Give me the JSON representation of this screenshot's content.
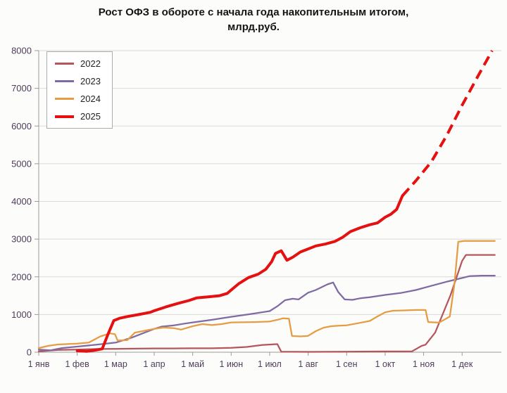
{
  "title": {
    "line1": "Рост ОФЗ в обороте с начала года накопительным итогом,",
    "line2": "млрд.руб."
  },
  "chart_data": {
    "type": "line",
    "title": "Рост ОФЗ в обороте с начала года накопительным итогом, млрд.руб.",
    "units": "млрд.руб.",
    "x_tick_labels": [
      "1 янв",
      "1 фев",
      "1 мар",
      "1 апр",
      "1 май",
      "1 июн",
      "1 июл",
      "1 авг",
      "1 сен",
      "1 окт",
      "1 ноя",
      "1 дек"
    ],
    "x_axis_note": "x units are months, 0 = 1 янв",
    "xlim_months": [
      0,
      12.02
    ],
    "ylim": [
      0,
      8000
    ],
    "y_ticks": [
      0,
      1000,
      2000,
      3000,
      4000,
      5000,
      6000,
      7000,
      8000
    ],
    "grid": "horizontal",
    "legend_position": "top-left",
    "axis_label_color": "#4e3d5c",
    "grid_color": "#d9d9d9",
    "axis_color": "#9b9b9b",
    "series": [
      {
        "name": "2022",
        "color": "#b5565c",
        "stroke_width": 2.25,
        "points": [
          [
            0,
            20
          ],
          [
            0.5,
            60
          ],
          [
            1,
            70
          ],
          [
            1.5,
            85
          ],
          [
            2,
            90
          ],
          [
            2.5,
            95
          ],
          [
            3,
            100
          ],
          [
            3.5,
            100
          ],
          [
            4,
            105
          ],
          [
            4.5,
            105
          ],
          [
            5,
            115
          ],
          [
            5.4,
            140
          ],
          [
            5.8,
            190
          ],
          [
            6.1,
            210
          ],
          [
            6.2,
            215
          ],
          [
            6.3,
            15
          ],
          [
            7,
            10
          ],
          [
            8,
            15
          ],
          [
            9,
            20
          ],
          [
            9.7,
            25
          ],
          [
            9.95,
            170
          ],
          [
            10.05,
            200
          ],
          [
            10.3,
            520
          ],
          [
            10.7,
            1520
          ],
          [
            11.0,
            2420
          ],
          [
            11.1,
            2580
          ],
          [
            11.85,
            2580
          ]
        ]
      },
      {
        "name": "2023",
        "color": "#7e6ba3",
        "stroke_width": 2.25,
        "points": [
          [
            0,
            70
          ],
          [
            0.3,
            50
          ],
          [
            0.6,
            110
          ],
          [
            1,
            150
          ],
          [
            1.5,
            200
          ],
          [
            2,
            255
          ],
          [
            2.4,
            380
          ],
          [
            2.7,
            500
          ],
          [
            3,
            620
          ],
          [
            3.2,
            680
          ],
          [
            3.5,
            710
          ],
          [
            3.8,
            760
          ],
          [
            4,
            790
          ],
          [
            4.5,
            860
          ],
          [
            5,
            940
          ],
          [
            5.5,
            1010
          ],
          [
            6,
            1090
          ],
          [
            6.2,
            1220
          ],
          [
            6.4,
            1380
          ],
          [
            6.6,
            1420
          ],
          [
            6.75,
            1400
          ],
          [
            7,
            1580
          ],
          [
            7.2,
            1650
          ],
          [
            7.5,
            1800
          ],
          [
            7.65,
            1850
          ],
          [
            7.78,
            1600
          ],
          [
            7.95,
            1400
          ],
          [
            8.15,
            1390
          ],
          [
            8.35,
            1430
          ],
          [
            8.6,
            1460
          ],
          [
            9,
            1520
          ],
          [
            9.4,
            1570
          ],
          [
            9.8,
            1650
          ],
          [
            10.2,
            1760
          ],
          [
            10.6,
            1870
          ],
          [
            11,
            1970
          ],
          [
            11.2,
            2020
          ],
          [
            11.5,
            2030
          ],
          [
            11.85,
            2030
          ]
        ]
      },
      {
        "name": "2024",
        "color": "#e59c43",
        "stroke_width": 2.25,
        "points": [
          [
            0,
            110
          ],
          [
            0.25,
            170
          ],
          [
            0.5,
            205
          ],
          [
            0.8,
            220
          ],
          [
            1,
            230
          ],
          [
            1.3,
            255
          ],
          [
            1.6,
            420
          ],
          [
            1.85,
            500
          ],
          [
            1.98,
            480
          ],
          [
            2.05,
            310
          ],
          [
            2.3,
            320
          ],
          [
            2.5,
            520
          ],
          [
            2.8,
            580
          ],
          [
            3,
            620
          ],
          [
            3.25,
            655
          ],
          [
            3.5,
            640
          ],
          [
            3.7,
            600
          ],
          [
            4,
            690
          ],
          [
            4.25,
            745
          ],
          [
            4.5,
            720
          ],
          [
            4.75,
            745
          ],
          [
            5,
            790
          ],
          [
            5.3,
            795
          ],
          [
            5.6,
            800
          ],
          [
            6,
            815
          ],
          [
            6.2,
            860
          ],
          [
            6.35,
            900
          ],
          [
            6.5,
            890
          ],
          [
            6.58,
            430
          ],
          [
            6.8,
            420
          ],
          [
            7,
            435
          ],
          [
            7.2,
            560
          ],
          [
            7.4,
            650
          ],
          [
            7.6,
            690
          ],
          [
            7.8,
            705
          ],
          [
            8,
            715
          ],
          [
            8.3,
            770
          ],
          [
            8.6,
            830
          ],
          [
            8.8,
            950
          ],
          [
            9,
            1060
          ],
          [
            9.2,
            1100
          ],
          [
            9.5,
            1110
          ],
          [
            9.8,
            1120
          ],
          [
            10.05,
            1120
          ],
          [
            10.12,
            800
          ],
          [
            10.4,
            785
          ],
          [
            10.55,
            870
          ],
          [
            10.68,
            950
          ],
          [
            10.8,
            1800
          ],
          [
            10.9,
            2930
          ],
          [
            11.05,
            2950
          ],
          [
            11.85,
            2950
          ]
        ]
      },
      {
        "name": "2025",
        "color": "#e51111",
        "stroke_width": 4,
        "points": [
          [
            1.0,
            40
          ],
          [
            1.25,
            25
          ],
          [
            1.5,
            60
          ],
          [
            1.65,
            90
          ],
          [
            1.8,
            480
          ],
          [
            1.95,
            840
          ],
          [
            2.1,
            900
          ],
          [
            2.3,
            945
          ],
          [
            2.6,
            1000
          ],
          [
            2.9,
            1060
          ],
          [
            3.0,
            1100
          ],
          [
            3.3,
            1200
          ],
          [
            3.6,
            1290
          ],
          [
            3.9,
            1370
          ],
          [
            4.1,
            1440
          ],
          [
            4.4,
            1470
          ],
          [
            4.7,
            1500
          ],
          [
            4.9,
            1560
          ],
          [
            5.0,
            1650
          ],
          [
            5.2,
            1820
          ],
          [
            5.45,
            1980
          ],
          [
            5.7,
            2070
          ],
          [
            5.9,
            2200
          ],
          [
            6.05,
            2400
          ],
          [
            6.15,
            2620
          ],
          [
            6.3,
            2690
          ],
          [
            6.45,
            2440
          ],
          [
            6.6,
            2520
          ],
          [
            6.8,
            2660
          ],
          [
            7.0,
            2740
          ],
          [
            7.2,
            2820
          ],
          [
            7.45,
            2870
          ],
          [
            7.7,
            2940
          ],
          [
            7.9,
            3050
          ],
          [
            8.1,
            3200
          ],
          [
            8.35,
            3300
          ],
          [
            8.6,
            3380
          ],
          [
            8.8,
            3430
          ],
          [
            9.0,
            3580
          ],
          [
            9.15,
            3660
          ],
          [
            9.3,
            3790
          ],
          [
            9.45,
            4150
          ]
        ],
        "projection_points_dashed": [
          [
            9.45,
            4150
          ],
          [
            9.8,
            4550
          ],
          [
            10.2,
            5050
          ],
          [
            10.6,
            5750
          ],
          [
            11.0,
            6550
          ],
          [
            11.4,
            7300
          ],
          [
            11.78,
            8000
          ]
        ]
      }
    ],
    "legend": [
      "2022",
      "2023",
      "2024",
      "2025"
    ]
  }
}
